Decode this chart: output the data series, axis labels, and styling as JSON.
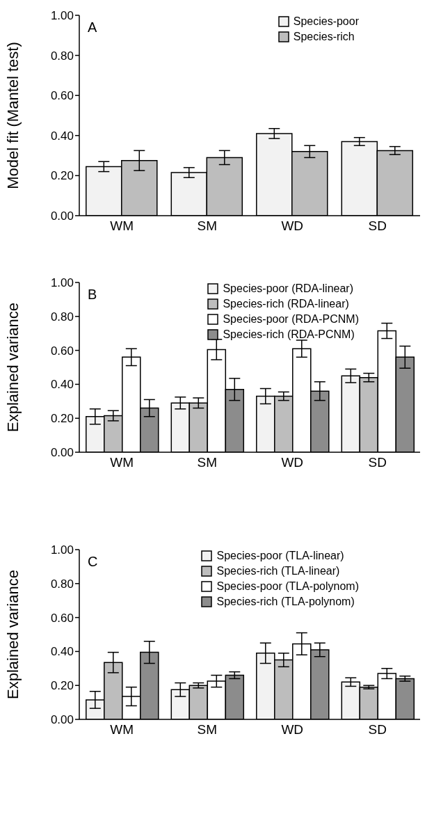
{
  "chart_data": [
    {
      "type": "bar",
      "title": "A",
      "ylabel": "Model fit (Mantel test)",
      "categories": [
        "WM",
        "SM",
        "WD",
        "SD"
      ],
      "ylim": [
        0,
        1
      ],
      "yticks": [
        {
          "value": 0,
          "label": "0.00"
        },
        {
          "value": 0.2,
          "label": "0.20"
        },
        {
          "value": 0.4,
          "label": "0.40"
        },
        {
          "value": 0.6,
          "label": "0.60"
        },
        {
          "value": 0.8,
          "label": "0.80"
        },
        {
          "value": 1,
          "label": "1.00"
        }
      ],
      "legend": "top right",
      "grid": false,
      "series": [
        {
          "name": "Species-poor",
          "color": "#f2f2f2",
          "values": [
            0.245,
            0.215,
            0.41,
            0.37
          ],
          "errors": [
            0.025,
            0.025,
            0.025,
            0.02
          ]
        },
        {
          "name": "Species-rich",
          "color": "#bdbdbd",
          "values": [
            0.275,
            0.29,
            0.32,
            0.325
          ],
          "errors": [
            0.05,
            0.035,
            0.03,
            0.02
          ]
        }
      ]
    },
    {
      "type": "bar",
      "title": "B",
      "ylabel": "Explained variance",
      "categories": [
        "WM",
        "SM",
        "WD",
        "SD"
      ],
      "ylim": [
        0,
        1
      ],
      "yticks": [
        {
          "value": 0,
          "label": "0.00"
        },
        {
          "value": 0.2,
          "label": "0.20"
        },
        {
          "value": 0.4,
          "label": "0.40"
        },
        {
          "value": 0.6,
          "label": "0.60"
        },
        {
          "value": 0.8,
          "label": "0.80"
        },
        {
          "value": 1,
          "label": "1.00"
        }
      ],
      "legend": "top right",
      "grid": false,
      "series": [
        {
          "name": "Species-poor (RDA-linear)",
          "color": "#f2f2f2",
          "values": [
            0.21,
            0.29,
            0.33,
            0.45
          ],
          "errors": [
            0.045,
            0.035,
            0.045,
            0.04
          ]
        },
        {
          "name": "Species-rich (RDA-linear)",
          "color": "#bdbdbd",
          "values": [
            0.215,
            0.29,
            0.33,
            0.44
          ],
          "errors": [
            0.03,
            0.03,
            0.025,
            0.025
          ]
        },
        {
          "name": "Species-poor (RDA-PCNM)",
          "color": "#ffffff",
          "values": [
            0.56,
            0.605,
            0.61,
            0.715
          ],
          "errors": [
            0.05,
            0.06,
            0.05,
            0.045
          ]
        },
        {
          "name": "Species-rich (RDA-PCNM)",
          "color": "#8c8c8c",
          "values": [
            0.26,
            0.37,
            0.36,
            0.56
          ],
          "errors": [
            0.05,
            0.065,
            0.055,
            0.065
          ]
        }
      ]
    },
    {
      "type": "bar",
      "title": "C",
      "ylabel": "Explained variance",
      "categories": [
        "WM",
        "SM",
        "WD",
        "SD"
      ],
      "ylim": [
        0,
        1
      ],
      "yticks": [
        {
          "value": 0,
          "label": "0.00"
        },
        {
          "value": 0.2,
          "label": "0.20"
        },
        {
          "value": 0.4,
          "label": "0.40"
        },
        {
          "value": 0.6,
          "label": "0.60"
        },
        {
          "value": 0.8,
          "label": "0.80"
        },
        {
          "value": 1,
          "label": "1.00"
        }
      ],
      "legend": "top right",
      "grid": false,
      "series": [
        {
          "name": "Species-poor (TLA-linear)",
          "color": "#f2f2f2",
          "values": [
            0.115,
            0.175,
            0.39,
            0.22
          ],
          "errors": [
            0.05,
            0.04,
            0.06,
            0.025
          ]
        },
        {
          "name": "Species-rich (TLA-linear)",
          "color": "#bdbdbd",
          "values": [
            0.335,
            0.2,
            0.35,
            0.19
          ],
          "errors": [
            0.06,
            0.015,
            0.04,
            0.01
          ]
        },
        {
          "name": "Species-poor (TLA-polynom)",
          "color": "#ffffff",
          "values": [
            0.135,
            0.225,
            0.445,
            0.27
          ],
          "errors": [
            0.055,
            0.035,
            0.065,
            0.03
          ]
        },
        {
          "name": "Species-rich (TLA-polynom)",
          "color": "#8c8c8c",
          "values": [
            0.395,
            0.26,
            0.41,
            0.24
          ],
          "errors": [
            0.065,
            0.02,
            0.04,
            0.015
          ]
        }
      ]
    }
  ]
}
